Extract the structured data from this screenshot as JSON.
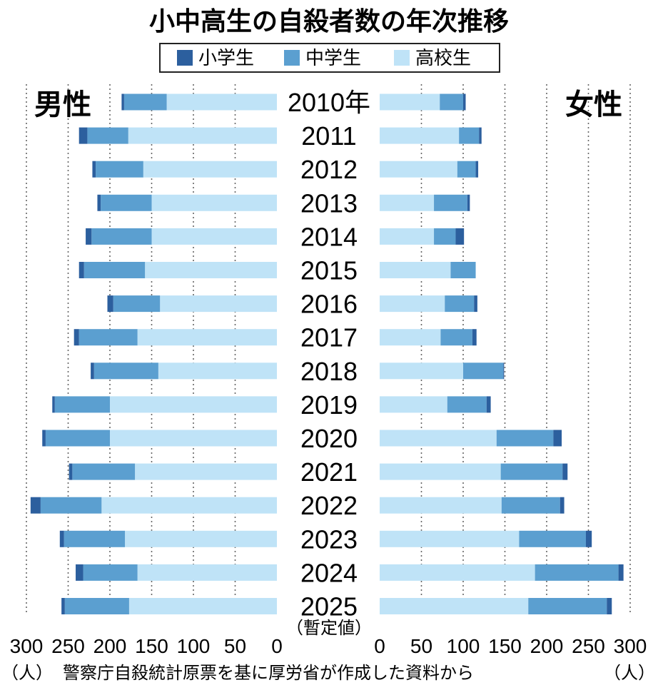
{
  "chart_data": {
    "type": "bar",
    "orientation": "horizontal",
    "layout": "population-pyramid",
    "stacked": true,
    "title": "小中高生の自殺者数の年次推移",
    "categories": [
      "2010年",
      "2011",
      "2012",
      "2013",
      "2014",
      "2015",
      "2016",
      "2017",
      "2018",
      "2019",
      "2020",
      "2021",
      "2022",
      "2023",
      "2024",
      "2025"
    ],
    "category_note": "（暫定値）",
    "legend": [
      "小学生",
      "中学生",
      "高校生"
    ],
    "legend_position": "top-center",
    "colors": {
      "小学生": "#2c5f9e",
      "中学生": "#5b9fd0",
      "高校生": "#bfe3f7"
    },
    "panels": [
      {
        "label": "男性",
        "side": "left",
        "xlim": [
          0,
          300
        ],
        "ticks": [
          300,
          250,
          200,
          150,
          100,
          50,
          0
        ],
        "unit": "（人）",
        "series": [
          {
            "name": "高校生",
            "values": [
              132,
              178,
              160,
              150,
              150,
              158,
              140,
              167,
              142,
              200,
              200,
              170,
              210,
              182,
              167,
              177
            ]
          },
          {
            "name": "中学生",
            "values": [
              51,
              49,
              57,
              61,
              72,
              73,
              56,
              70,
              77,
              66,
              77,
              75,
              73,
              73,
              65,
              77
            ]
          },
          {
            "name": "小学生",
            "values": [
              3,
              10,
              4,
              4,
              7,
              6,
              7,
              6,
              4,
              3,
              4,
              4,
              12,
              5,
              9,
              4
            ]
          }
        ]
      },
      {
        "label": "女性",
        "side": "right",
        "xlim": [
          0,
          300
        ],
        "ticks": [
          0,
          50,
          100,
          150,
          200,
          250,
          300
        ],
        "unit": "（人）",
        "series": [
          {
            "name": "高校生",
            "values": [
              72,
              95,
              93,
              65,
              65,
              85,
              78,
              73,
              100,
              81,
              140,
              145,
              146,
              167,
              186,
              178
            ]
          },
          {
            "name": "中学生",
            "values": [
              28,
              24,
              22,
              40,
              26,
              30,
              35,
              38,
              48,
              47,
              68,
              74,
              70,
              80,
              100,
              94
            ]
          },
          {
            "name": "小学生",
            "values": [
              3,
              3,
              3,
              3,
              10,
              0,
              4,
              5,
              1,
              5,
              10,
              6,
              5,
              7,
              6,
              6
            ]
          }
        ]
      }
    ]
  },
  "source_note": "警察庁自殺統計原票を基に厚労省が作成した資料から"
}
